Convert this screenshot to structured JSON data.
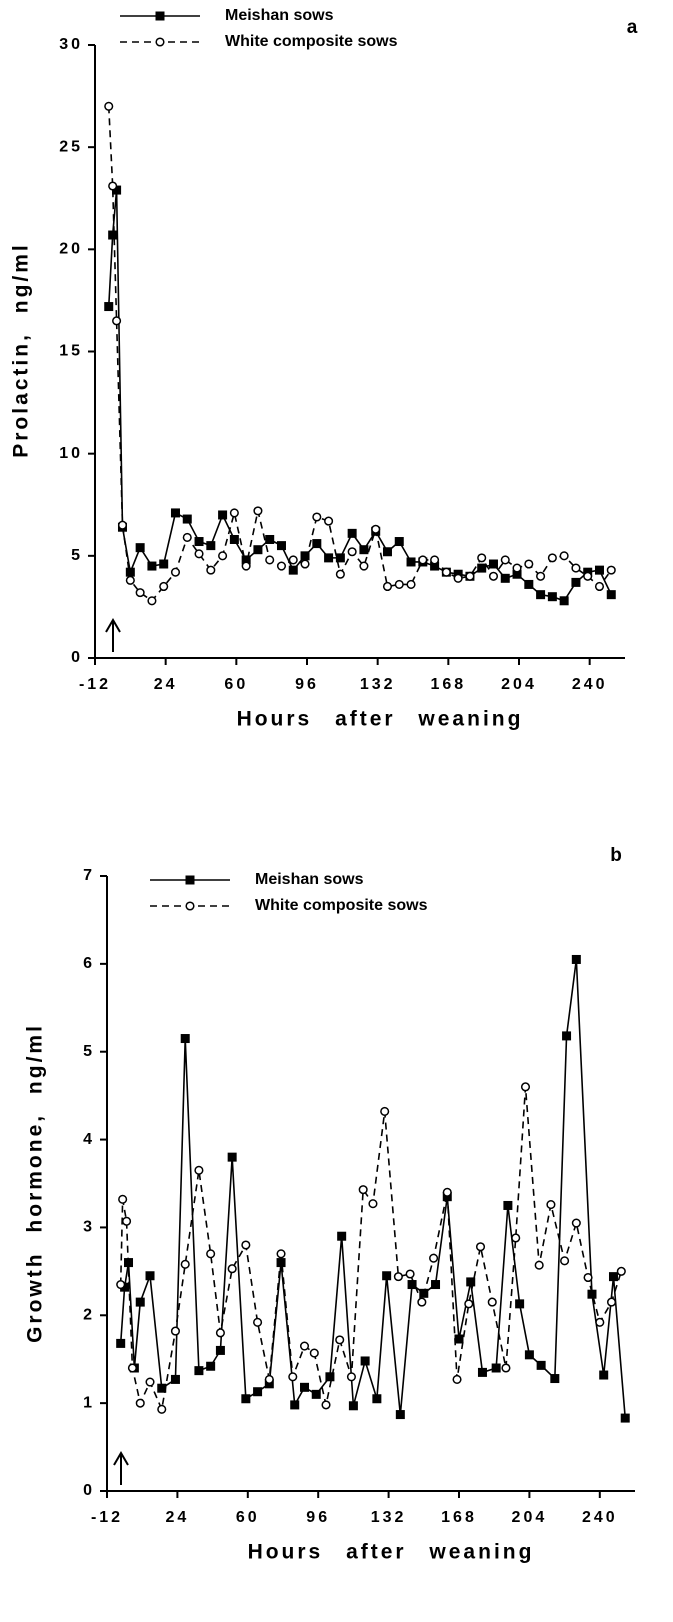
{
  "chart_data": [
    {
      "type": "line",
      "panel_label": "a",
      "x_label": "Hours after weaning",
      "y_label": "Prolactin, ng/ml",
      "xlim": [
        -12,
        258
      ],
      "ylim": [
        0,
        30
      ],
      "xticks": [
        -12,
        24,
        60,
        96,
        132,
        168,
        204,
        240
      ],
      "yticks": [
        0,
        5,
        10,
        15,
        20,
        25,
        30
      ],
      "series": [
        {
          "name": "Meishan sows",
          "color": "#000000",
          "marker": "square",
          "linestyle": "solid",
          "x": [
            -5,
            -3,
            -1,
            2,
            6,
            11,
            17,
            23,
            29,
            35,
            41,
            47,
            53,
            59,
            65,
            71,
            77,
            83,
            89,
            95,
            101,
            107,
            113,
            119,
            125,
            131,
            137,
            143,
            149,
            155,
            161,
            167,
            173,
            179,
            185,
            191,
            197,
            203,
            209,
            215,
            221,
            227,
            233,
            239,
            245,
            251
          ],
          "values": [
            17.2,
            20.7,
            22.9,
            6.4,
            4.2,
            5.4,
            4.5,
            4.6,
            7.1,
            6.8,
            5.7,
            5.5,
            7.0,
            5.8,
            4.8,
            5.3,
            5.8,
            5.5,
            4.3,
            5.0,
            5.6,
            4.9,
            4.9,
            6.1,
            5.3,
            6.2,
            5.2,
            5.7,
            4.7,
            4.7,
            4.5,
            4.2,
            4.1,
            4.0,
            4.4,
            4.6,
            3.9,
            4.1,
            3.6,
            3.1,
            3.0,
            2.8,
            3.7,
            4.2,
            4.3,
            3.1
          ]
        },
        {
          "name": "White composite sows",
          "color": "#000000",
          "marker": "circle",
          "linestyle": "dashed",
          "x": [
            -5,
            -3,
            -1,
            2,
            6,
            11,
            17,
            23,
            29,
            35,
            41,
            47,
            53,
            59,
            65,
            71,
            77,
            83,
            89,
            95,
            101,
            107,
            113,
            119,
            125,
            131,
            137,
            143,
            149,
            155,
            161,
            167,
            173,
            179,
            185,
            191,
            197,
            203,
            209,
            215,
            221,
            227,
            233,
            239,
            245,
            251
          ],
          "values": [
            27.0,
            23.1,
            16.5,
            6.5,
            3.8,
            3.2,
            2.8,
            3.5,
            4.2,
            5.9,
            5.1,
            4.3,
            5.0,
            7.1,
            4.5,
            7.2,
            4.8,
            4.5,
            4.8,
            4.6,
            6.9,
            6.7,
            4.1,
            5.2,
            4.5,
            6.3,
            3.5,
            3.6,
            3.6,
            4.8,
            4.8,
            4.2,
            3.9,
            4.0,
            4.9,
            4.0,
            4.8,
            4.4,
            4.6,
            4.0,
            4.9,
            5.0,
            4.4,
            4.0,
            3.5,
            4.3
          ]
        }
      ]
    },
    {
      "type": "line",
      "panel_label": "b",
      "x_label": "Hours after weaning",
      "y_label": "Growth hormone, ng/ml",
      "xlim": [
        -12,
        258
      ],
      "ylim": [
        0,
        7
      ],
      "xticks": [
        -12,
        24,
        60,
        96,
        132,
        168,
        204,
        240
      ],
      "yticks": [
        0,
        1,
        2,
        3,
        4,
        5,
        6,
        7
      ],
      "series": [
        {
          "name": "Meishan sows",
          "color": "#000000",
          "marker": "square",
          "linestyle": "solid",
          "x": [
            -5,
            -3,
            -1,
            2,
            5,
            10,
            16,
            23,
            28,
            35,
            41,
            46,
            52,
            59,
            65,
            71,
            77,
            84,
            89,
            95,
            102,
            108,
            114,
            120,
            126,
            131,
            138,
            144,
            150,
            156,
            162,
            168,
            174,
            180,
            187,
            193,
            199,
            204,
            210,
            217,
            223,
            228,
            236,
            242,
            247,
            253
          ],
          "values": [
            1.68,
            2.32,
            2.6,
            1.4,
            2.15,
            2.45,
            1.17,
            1.27,
            5.15,
            1.37,
            1.42,
            1.6,
            3.8,
            1.05,
            1.13,
            1.22,
            2.6,
            0.98,
            1.18,
            1.1,
            1.3,
            2.9,
            0.97,
            1.48,
            1.05,
            2.45,
            0.87,
            2.35,
            2.25,
            2.35,
            3.35,
            1.73,
            2.38,
            1.35,
            1.4,
            3.25,
            2.13,
            1.55,
            1.43,
            1.28,
            5.18,
            6.05,
            2.24,
            1.32,
            2.44,
            0.83
          ]
        },
        {
          "name": "White composite sows",
          "color": "#000000",
          "marker": "circle",
          "linestyle": "dashed",
          "x": [
            -5,
            -4,
            -2,
            1,
            5,
            10,
            16,
            23,
            28,
            35,
            41,
            46,
            52,
            59,
            65,
            71,
            77,
            83,
            89,
            94,
            100,
            107,
            113,
            119,
            124,
            130,
            137,
            143,
            149,
            155,
            162,
            167,
            173,
            179,
            185,
            192,
            197,
            202,
            209,
            215,
            222,
            228,
            234,
            240,
            246,
            251
          ],
          "values": [
            2.35,
            3.32,
            3.07,
            1.4,
            1.0,
            1.24,
            0.93,
            1.82,
            2.58,
            3.65,
            2.7,
            1.8,
            2.53,
            2.8,
            1.92,
            1.27,
            2.7,
            1.3,
            1.65,
            1.57,
            0.98,
            1.72,
            1.3,
            3.43,
            3.27,
            4.32,
            2.44,
            2.47,
            2.15,
            2.65,
            3.4,
            1.27,
            2.13,
            2.78,
            2.15,
            1.4,
            2.88,
            4.6,
            2.57,
            3.26,
            2.62,
            3.05,
            2.43,
            1.92,
            2.15,
            2.5
          ]
        }
      ]
    }
  ]
}
